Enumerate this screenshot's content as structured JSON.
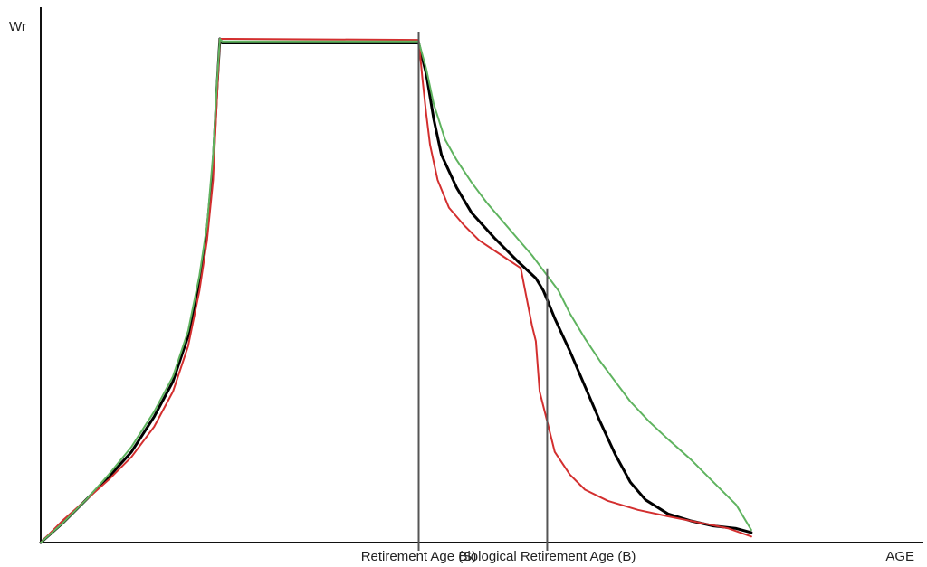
{
  "chart_data": {
    "type": "line",
    "ylabel": "Wr",
    "xlabel": "AGE",
    "xlim": [
      0,
      100
    ],
    "ylim": [
      0,
      100
    ],
    "grid": false,
    "legend": "none",
    "markers": [
      {
        "label": "Retirement Age (S)",
        "x": 50.0,
        "y_top": 100
      },
      {
        "label": "Biological Retirement Age (B)",
        "x": 67.0,
        "y_top": 53
      }
    ],
    "series": [
      {
        "color": "#000000",
        "points": [
          [
            0,
            0
          ],
          [
            3,
            4
          ],
          [
            6,
            8.5
          ],
          [
            9,
            13
          ],
          [
            12,
            18
          ],
          [
            15,
            25
          ],
          [
            17.5,
            32
          ],
          [
            19.5,
            41
          ],
          [
            21,
            52
          ],
          [
            22,
            62
          ],
          [
            22.8,
            75
          ],
          [
            23.3,
            90
          ],
          [
            23.7,
            100
          ],
          [
            24,
            99.2
          ],
          [
            50,
            99.2
          ],
          [
            51,
            93
          ],
          [
            52,
            84
          ],
          [
            53,
            77
          ],
          [
            55,
            70.5
          ],
          [
            57,
            65.5
          ],
          [
            60,
            60.5
          ],
          [
            63,
            56
          ],
          [
            65.5,
            52.5
          ],
          [
            66.5,
            50
          ],
          [
            68,
            44.5
          ],
          [
            70,
            38
          ],
          [
            72,
            31
          ],
          [
            74,
            24
          ],
          [
            76,
            17.5
          ],
          [
            78,
            12
          ],
          [
            80,
            8.5
          ],
          [
            83,
            5.7
          ],
          [
            86,
            4.3
          ],
          [
            89,
            3.3
          ],
          [
            92,
            2.8
          ],
          [
            94,
            2
          ]
        ]
      },
      {
        "color": "#d32f2f",
        "points": [
          [
            0,
            0
          ],
          [
            3,
            4.5
          ],
          [
            6,
            8.5
          ],
          [
            9,
            12.5
          ],
          [
            12,
            17
          ],
          [
            15,
            23
          ],
          [
            17.5,
            30
          ],
          [
            19.5,
            39
          ],
          [
            21,
            50
          ],
          [
            22,
            60
          ],
          [
            22.8,
            72
          ],
          [
            23.3,
            88
          ],
          [
            23.7,
            100
          ],
          [
            24,
            100
          ],
          [
            50,
            99.8
          ],
          [
            50.5,
            92
          ],
          [
            51,
            85
          ],
          [
            51.5,
            79
          ],
          [
            52.5,
            72
          ],
          [
            54,
            66.5
          ],
          [
            56,
            63
          ],
          [
            58,
            60
          ],
          [
            61,
            57
          ],
          [
            63.5,
            54.5
          ],
          [
            65,
            43
          ],
          [
            65.5,
            40
          ],
          [
            66,
            30
          ],
          [
            67,
            24
          ],
          [
            68,
            18
          ],
          [
            70,
            13.5
          ],
          [
            72,
            10.5
          ],
          [
            75,
            8.3
          ],
          [
            79,
            6.5
          ],
          [
            83,
            5.2
          ],
          [
            87,
            4
          ],
          [
            91,
            2.8
          ],
          [
            94,
            1.2
          ]
        ]
      },
      {
        "color": "#5fb35f",
        "points": [
          [
            0,
            0
          ],
          [
            3,
            4
          ],
          [
            6,
            8.5
          ],
          [
            9,
            13.5
          ],
          [
            12,
            19
          ],
          [
            15,
            26
          ],
          [
            17.5,
            33
          ],
          [
            19.5,
            42
          ],
          [
            21,
            53
          ],
          [
            22,
            63
          ],
          [
            22.8,
            77
          ],
          [
            23.3,
            91
          ],
          [
            23.7,
            100
          ],
          [
            24,
            99.5
          ],
          [
            50,
            99.5
          ],
          [
            51,
            94
          ],
          [
            52,
            87
          ],
          [
            53.5,
            80
          ],
          [
            55,
            76
          ],
          [
            57,
            71.5
          ],
          [
            59,
            67.5
          ],
          [
            61,
            64
          ],
          [
            63,
            60.5
          ],
          [
            65,
            57
          ],
          [
            67,
            53
          ],
          [
            68.5,
            50
          ],
          [
            70,
            45.5
          ],
          [
            72,
            40.5
          ],
          [
            74,
            36
          ],
          [
            76,
            32
          ],
          [
            78,
            28
          ],
          [
            80.5,
            24
          ],
          [
            83,
            20.5
          ],
          [
            86,
            16.5
          ],
          [
            89,
            12
          ],
          [
            92,
            7.5
          ],
          [
            94,
            2.5
          ]
        ]
      }
    ]
  }
}
